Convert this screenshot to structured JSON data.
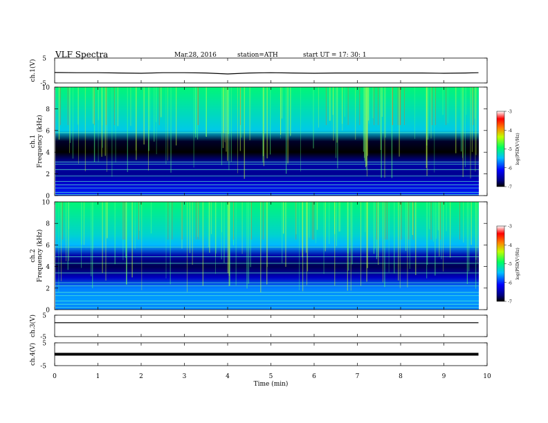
{
  "header": {
    "title": "VLF  Spectra",
    "date": "Mar.28, 2016",
    "station": "station=ATH",
    "start": "start  UT  =   17: 30: 1"
  },
  "chart_data": [
    {
      "type": "line",
      "panel": "ch1-waveform",
      "ylabel": "ch.1(V)",
      "ylim": [
        -5,
        5
      ],
      "yticks": [
        "5",
        "-5"
      ],
      "x": [
        0,
        0.5,
        1,
        1.5,
        2,
        2.5,
        3,
        3.5,
        4,
        4.5,
        5,
        5.5,
        6,
        6.5,
        7,
        7.5,
        8,
        8.5,
        9,
        9.5,
        9.8
      ],
      "values": [
        -0.8,
        -0.9,
        -0.9,
        -1.0,
        -1.1,
        -0.9,
        -0.9,
        -1.0,
        -1.4,
        -1.0,
        -0.9,
        -1.0,
        -1.1,
        -1.0,
        -1.0,
        -1.0,
        -1.0,
        -1.0,
        -1.1,
        -1.0,
        -0.9
      ]
    },
    {
      "type": "heatmap",
      "panel": "ch1-spectrogram",
      "ylabel": "Frequency  (kHz)",
      "channel_label": "ch.1",
      "ylim": [
        0,
        10
      ],
      "yticks": [
        "0",
        "2",
        "4",
        "6",
        "8",
        "10"
      ],
      "colorbar": {
        "label": "log(PSD(V²/Hz)",
        "range": [
          -7,
          -3
        ],
        "ticks": [
          "-3",
          "-4",
          "-5",
          "-6",
          "-7"
        ]
      },
      "frequency_levels_kHz": [
        0,
        1,
        2,
        3,
        4,
        5,
        6,
        7,
        8,
        9,
        10
      ],
      "log_psd": [
        -6.0,
        -6.3,
        -6.6,
        -6.5,
        -7.0,
        -6.9,
        -5.4,
        -5.3,
        -5.2,
        -5.1,
        -5.0
      ],
      "spectral_lines_kHz": [
        0.1,
        0.3,
        0.7,
        1.0,
        1.3,
        1.8,
        2.4,
        2.9,
        3.1,
        5.8
      ]
    },
    {
      "type": "heatmap",
      "panel": "ch2-spectrogram",
      "ylabel": "Frequency  (kHz)",
      "channel_label": "ch.2",
      "ylim": [
        0,
        10
      ],
      "yticks": [
        "0",
        "2",
        "4",
        "6",
        "8",
        "10"
      ],
      "colorbar": {
        "label": "log(PSD(V²/Hz)",
        "range": [
          -7,
          -3
        ],
        "ticks": [
          "-3",
          "-4",
          "-5",
          "-6",
          "-7"
        ]
      },
      "frequency_levels_kHz": [
        0,
        1,
        2,
        3,
        4,
        5,
        6,
        7,
        8,
        9,
        10
      ],
      "log_psd": [
        -5.7,
        -5.6,
        -5.7,
        -6.4,
        -6.8,
        -6.5,
        -5.5,
        -5.3,
        -5.2,
        -5.1,
        -5.0
      ],
      "spectral_lines_kHz": [
        0.2,
        0.5,
        0.8,
        1.3,
        1.6,
        2.2,
        2.5,
        3.4,
        4.3,
        4.9,
        5.8
      ]
    },
    {
      "type": "line",
      "panel": "ch3-waveform",
      "ylabel": "ch.3(V)",
      "ylim": [
        -5,
        5
      ],
      "yticks": [
        "5",
        "-5"
      ],
      "x": [
        0,
        9.8
      ],
      "values": [
        1.5,
        1.5
      ]
    },
    {
      "type": "line",
      "panel": "ch4-waveform",
      "ylabel": "ch.4(V)",
      "ylim": [
        -5,
        5
      ],
      "yticks": [
        "5",
        "-5"
      ],
      "x": [
        0,
        9.8
      ],
      "values": [
        0,
        0
      ]
    }
  ],
  "time_axis": {
    "xlabel": "Time  (min)",
    "xlim": [
      0,
      10
    ],
    "ticks": [
      "0",
      "1",
      "2",
      "3",
      "4",
      "5",
      "6",
      "7",
      "8",
      "9",
      "10"
    ]
  }
}
